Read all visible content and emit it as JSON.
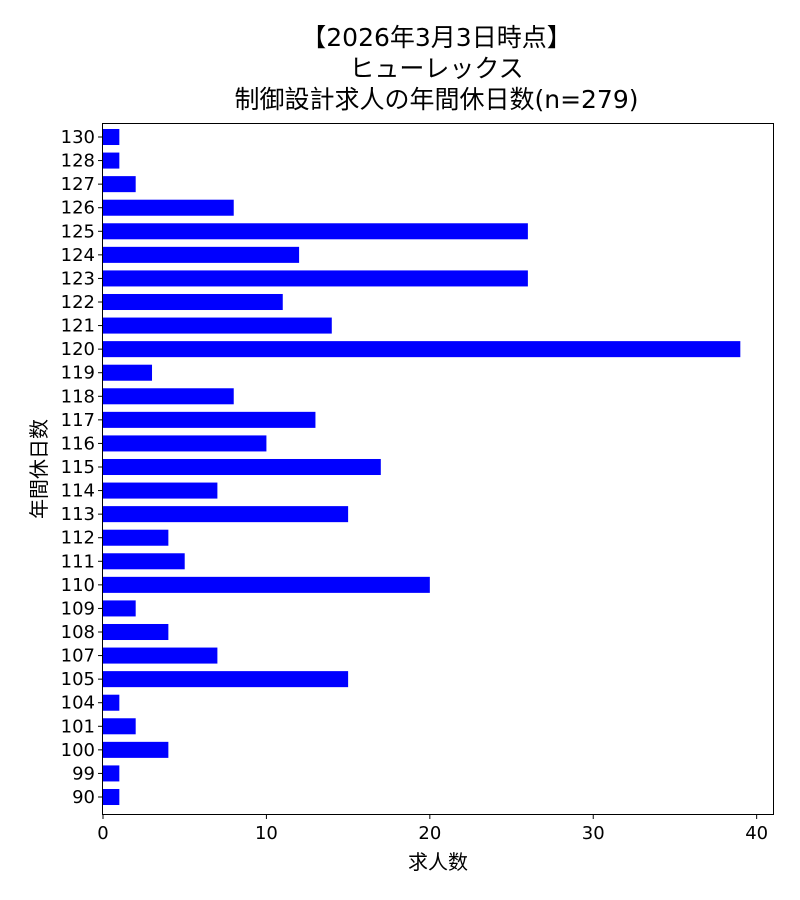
{
  "chart_data": {
    "type": "bar",
    "orientation": "horizontal",
    "title_lines": [
      "【2026年3月3日時点】",
      "ヒューレックス",
      "制御設計求人の年間休日数(n=279)"
    ],
    "xlabel": "求人数",
    "ylabel": "年間休日数",
    "categories": [
      "90",
      "99",
      "100",
      "101",
      "104",
      "105",
      "107",
      "108",
      "109",
      "110",
      "111",
      "112",
      "113",
      "114",
      "115",
      "116",
      "117",
      "118",
      "119",
      "120",
      "121",
      "122",
      "123",
      "124",
      "125",
      "126",
      "127",
      "128",
      "130"
    ],
    "values": [
      1,
      1,
      4,
      2,
      1,
      15,
      7,
      4,
      2,
      20,
      5,
      4,
      15,
      7,
      17,
      10,
      13,
      8,
      3,
      39,
      14,
      11,
      26,
      12,
      26,
      8,
      2,
      1,
      1
    ],
    "xlim": [
      0,
      41
    ],
    "xticks": [
      0,
      10,
      20,
      30,
      40
    ],
    "bar_color": "#0000ff",
    "grid": false,
    "legend": "none"
  }
}
